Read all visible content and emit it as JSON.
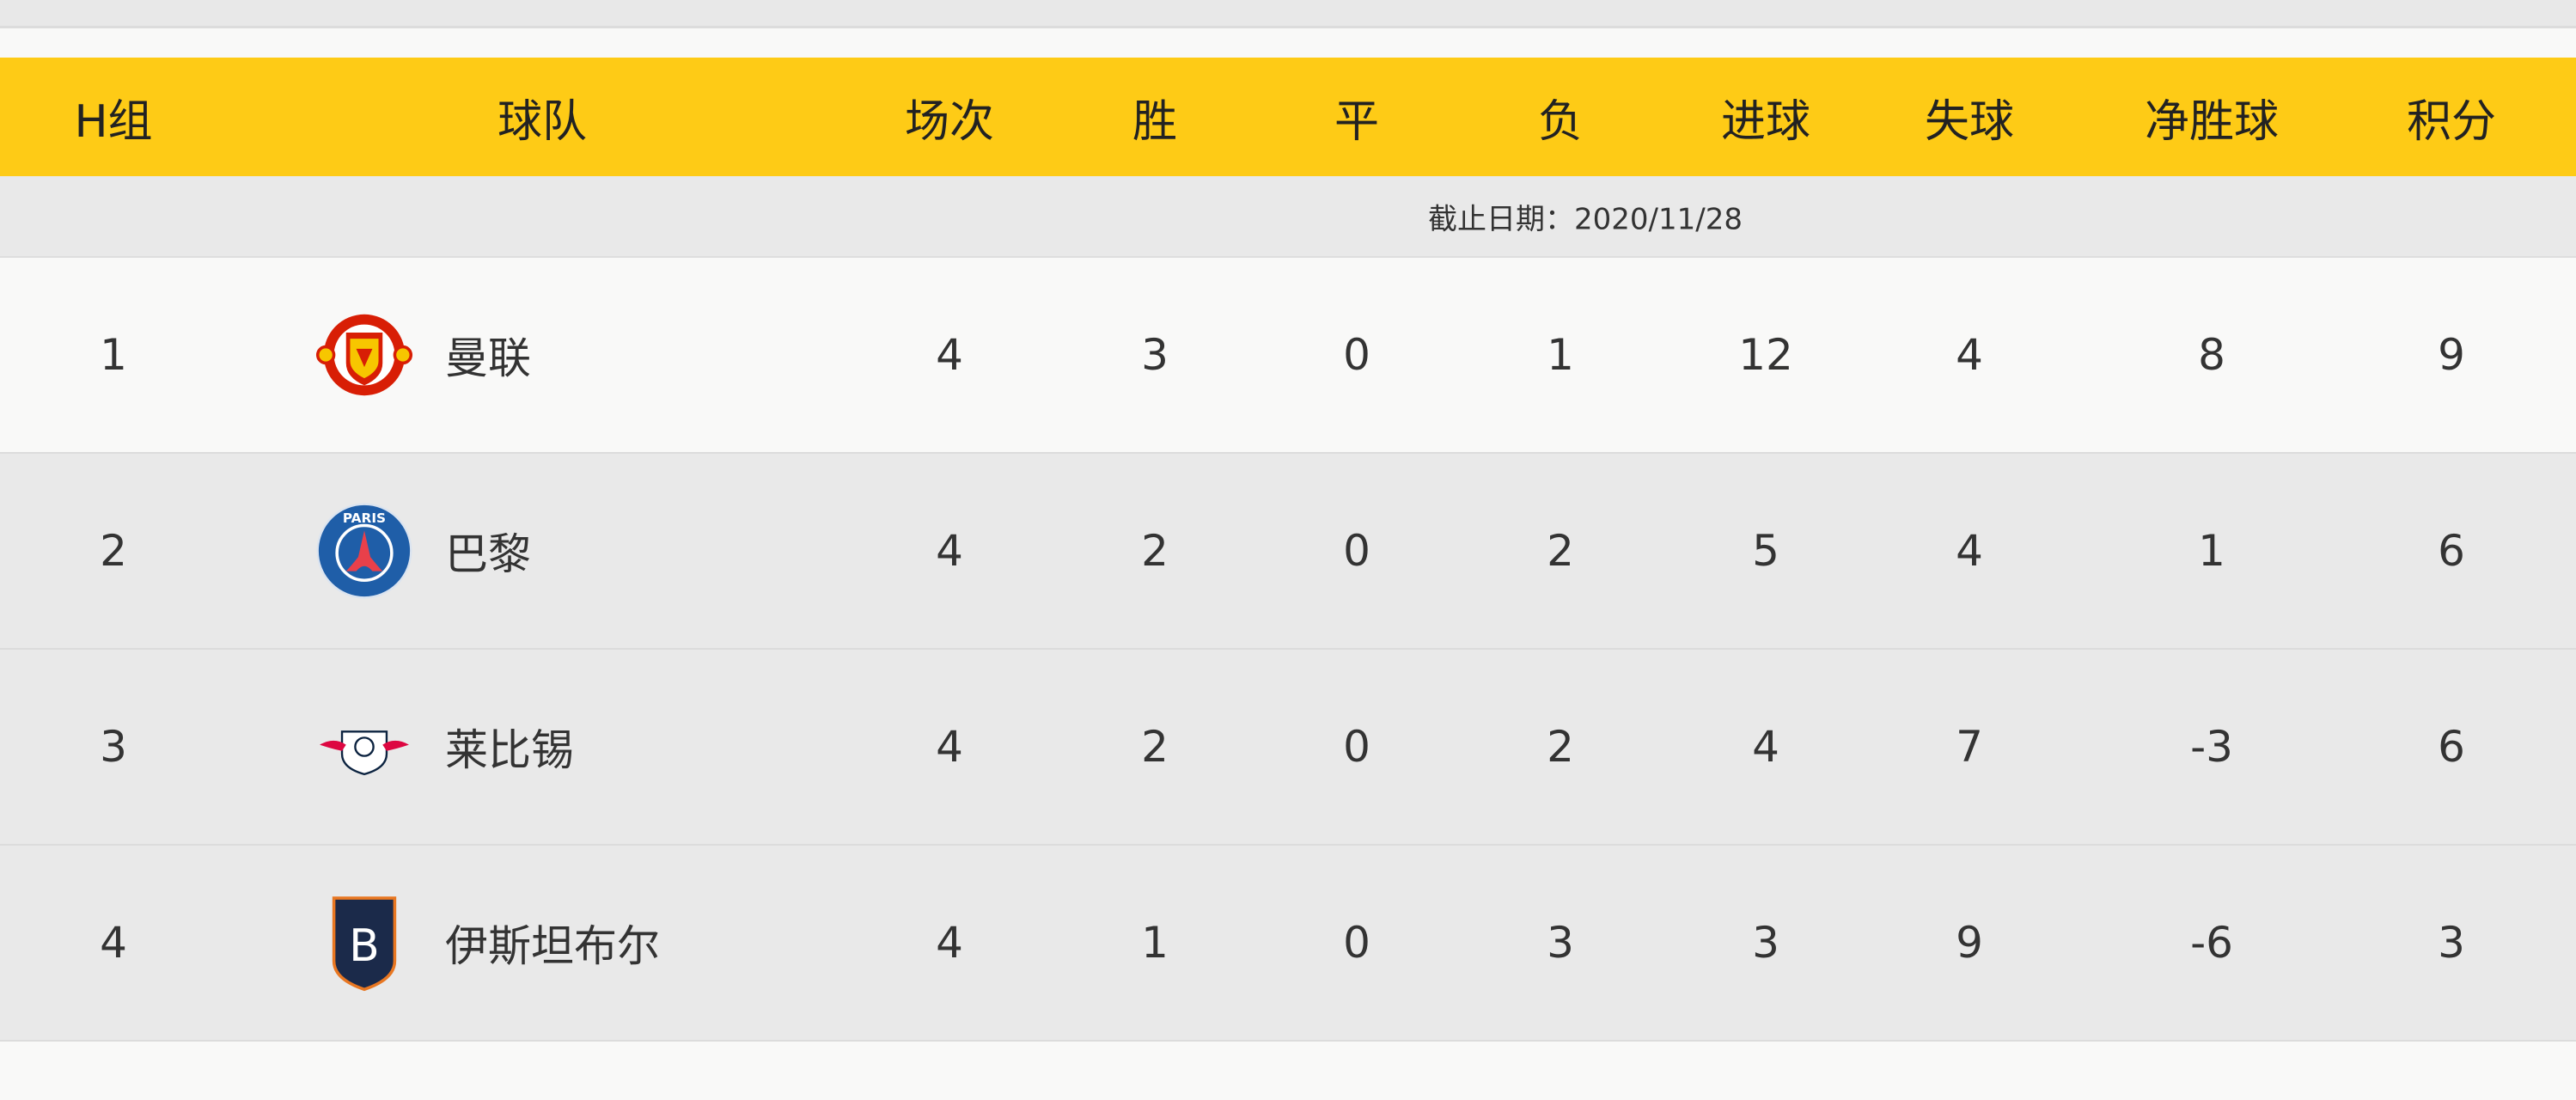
{
  "header": {
    "group": "H组",
    "team": "球队",
    "played": "场次",
    "won": "胜",
    "drawn": "平",
    "lost": "负",
    "goals_for": "进球",
    "goals_against": "失球",
    "goal_diff": "净胜球",
    "points": "积分"
  },
  "date_note": "截止日期：2020/11/28",
  "colors": {
    "header_bg": "#fecb16",
    "row_alt_bg": "#e9e9e9"
  },
  "rows": [
    {
      "rank": "1",
      "team": "曼联",
      "logo": "manchester-united-crest",
      "played": "4",
      "won": "3",
      "drawn": "0",
      "lost": "1",
      "gf": "12",
      "ga": "4",
      "gd": "8",
      "pts": "9"
    },
    {
      "rank": "2",
      "team": "巴黎",
      "logo": "psg-crest",
      "played": "4",
      "won": "2",
      "drawn": "0",
      "lost": "2",
      "gf": "5",
      "ga": "4",
      "gd": "1",
      "pts": "6"
    },
    {
      "rank": "3",
      "team": "莱比锡",
      "logo": "rb-leipzig-crest",
      "played": "4",
      "won": "2",
      "drawn": "0",
      "lost": "2",
      "gf": "4",
      "ga": "7",
      "gd": "-3",
      "pts": "6"
    },
    {
      "rank": "4",
      "team": "伊斯坦布尔",
      "logo": "basaksehir-crest",
      "played": "4",
      "won": "1",
      "drawn": "0",
      "lost": "3",
      "gf": "3",
      "ga": "9",
      "gd": "-6",
      "pts": "3"
    }
  ]
}
